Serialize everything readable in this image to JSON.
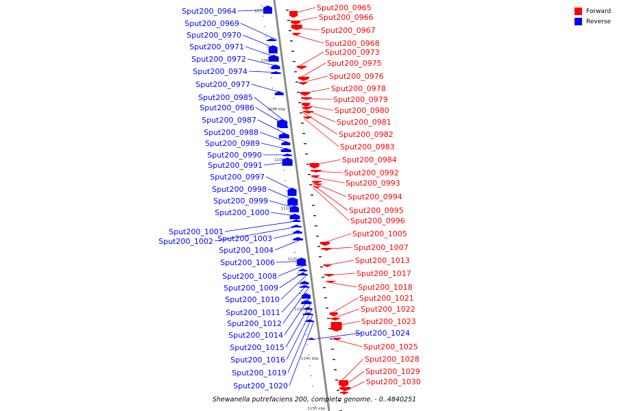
{
  "legend": {
    "forward_label": "Forward",
    "reverse_label": "Reverse",
    "forward_color": "#ff0000",
    "reverse_color": "#0000ff"
  },
  "caption": "Shewanella putrefaciens 200, complete genome. - 0..4840251",
  "coordinate_ticks": [
    "1070 kbp",
    "1080 kbp",
    "1090 kbp",
    "1100 kbp",
    "1110 kbp",
    "1120 kbp",
    "1130 kbp",
    "1140 kbp",
    "1150 kbp"
  ],
  "reverse_genes": [
    "Sput200_0964",
    "Sput200_0969",
    "Sput200_0970",
    "Sput200_0971",
    "Sput200_0972",
    "Sput200_0974",
    "Sput200_0977",
    "Sput200_0985",
    "Sput200_0986",
    "Sput200_0987",
    "Sput200_0988",
    "Sput200_0989",
    "Sput200_0990",
    "Sput200_0991",
    "Sput200_0997",
    "Sput200_0998",
    "Sput200_0999",
    "Sput200_1000",
    "Sput200_1001",
    "Sput200_1002",
    "Sput200_1003",
    "Sput200_1004",
    "Sput200_1006",
    "Sput200_1008",
    "Sput200_1009",
    "Sput200_1010",
    "Sput200_1011",
    "Sput200_1012",
    "Sput200_1014",
    "Sput200_1015",
    "Sput200_1016",
    "Sput200_1019",
    "Sput200_1020",
    "Sput200_1024"
  ],
  "forward_genes": [
    "Sput200_0965",
    "Sput200_0966",
    "Sput200_0967",
    "Sput200_0968",
    "Sput200_0973",
    "Sput200_0975",
    "Sput200_0976",
    "Sput200_0978",
    "Sput200_0979",
    "Sput200_0980",
    "Sput200_0981",
    "Sput200_0982",
    "Sput200_0983",
    "Sput200_0984",
    "Sput200_0992",
    "Sput200_0993",
    "Sput200_0994",
    "Sput200_0995",
    "Sput200_0996",
    "Sput200_1005",
    "Sput200_1007",
    "Sput200_1013",
    "Sput200_1017",
    "Sput200_1018",
    "Sput200_1021",
    "Sput200_1022",
    "Sput200_1023",
    "Sput200_1025",
    "Sput200_1028",
    "Sput200_1029",
    "Sput200_1030"
  ]
}
